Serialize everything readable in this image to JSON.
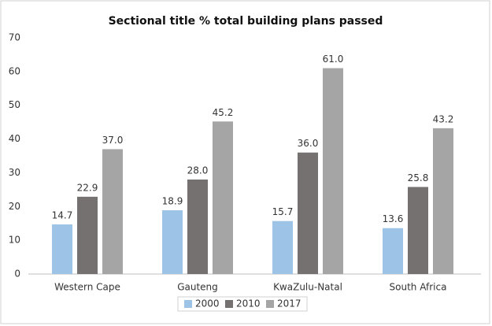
{
  "chart_data": {
    "type": "bar",
    "title": "Sectional title % total building plans passed",
    "categories": [
      "Western Cape",
      "Gauteng",
      "KwaZulu-Natal",
      "South Africa"
    ],
    "series": [
      {
        "name": "2000",
        "color": "#9dc3e6",
        "values": [
          14.7,
          18.9,
          15.7,
          13.6
        ],
        "value_labels": [
          "14.7",
          "18.9",
          "15.7",
          "13.6"
        ]
      },
      {
        "name": "2010",
        "color": "#767171",
        "values": [
          22.9,
          28.0,
          36.0,
          25.8
        ],
        "value_labels": [
          "22.9",
          "28.0",
          "36.0",
          "25.8"
        ]
      },
      {
        "name": "2017",
        "color": "#a5a5a5",
        "values": [
          37.0,
          45.2,
          61.0,
          43.2
        ],
        "value_labels": [
          "37.0",
          "45.2",
          "61.0",
          "43.2"
        ]
      }
    ],
    "ylim": [
      0,
      70
    ],
    "yticks": [
      0,
      10,
      20,
      30,
      40,
      50,
      60,
      70
    ],
    "grid": false,
    "legend": "bottom"
  }
}
